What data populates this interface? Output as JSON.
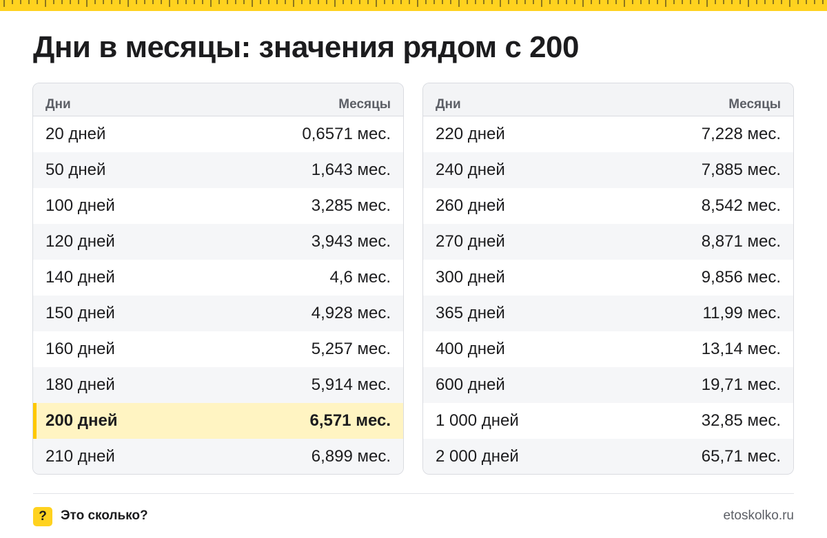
{
  "title": "Дни в месяцы: значения рядом с 200",
  "colors": {
    "accent": "#ffd21f",
    "highlight_bg": "#fff4c2",
    "highlight_border": "#ffc800"
  },
  "left_table": {
    "headers": {
      "days": "Дни",
      "months": "Месяцы"
    },
    "rows": [
      {
        "days": "20 дней",
        "months": "0,6571 мес."
      },
      {
        "days": "50 дней",
        "months": "1,643 мес."
      },
      {
        "days": "100 дней",
        "months": "3,285 мес."
      },
      {
        "days": "120 дней",
        "months": "3,943 мес."
      },
      {
        "days": "140 дней",
        "months": "4,6 мес."
      },
      {
        "days": "150 дней",
        "months": "4,928 мес."
      },
      {
        "days": "160 дней",
        "months": "5,257 мес."
      },
      {
        "days": "180 дней",
        "months": "5,914 мес."
      },
      {
        "days": "200 дней",
        "months": "6,571 мес.",
        "highlighted": true
      },
      {
        "days": "210 дней",
        "months": "6,899 мес."
      }
    ]
  },
  "right_table": {
    "headers": {
      "days": "Дни",
      "months": "Месяцы"
    },
    "rows": [
      {
        "days": "220 дней",
        "months": "7,228 мес."
      },
      {
        "days": "240 дней",
        "months": "7,885 мес."
      },
      {
        "days": "260 дней",
        "months": "8,542 мес."
      },
      {
        "days": "270 дней",
        "months": "8,871 мес."
      },
      {
        "days": "300 дней",
        "months": "9,856 мес."
      },
      {
        "days": "365 дней",
        "months": "11,99 мес."
      },
      {
        "days": "400 дней",
        "months": "13,14 мес."
      },
      {
        "days": "600 дней",
        "months": "19,71 мес."
      },
      {
        "days": "1 000 дней",
        "months": "32,85 мес."
      },
      {
        "days": "2 000 дней",
        "months": "65,71 мес."
      }
    ]
  },
  "footer": {
    "badge": "?",
    "brand": "Это сколько?",
    "site": "etoskolko.ru"
  }
}
